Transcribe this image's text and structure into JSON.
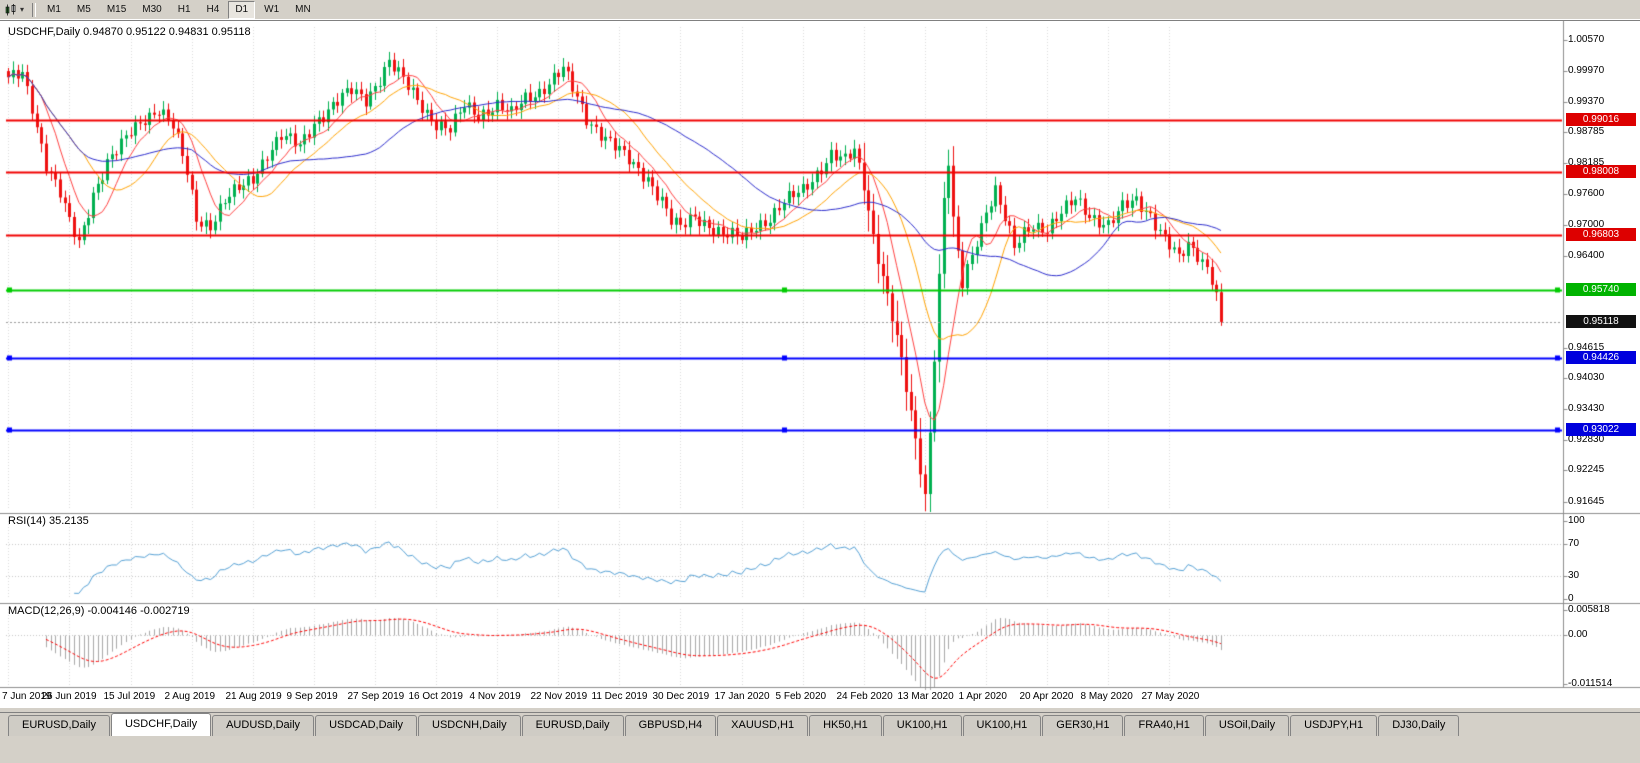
{
  "toolbar": {
    "chart_icon": "candlestick-chart-icon",
    "timeframes": [
      {
        "label": "M1",
        "active": false
      },
      {
        "label": "M5",
        "active": false
      },
      {
        "label": "M15",
        "active": false
      },
      {
        "label": "M30",
        "active": false
      },
      {
        "label": "H1",
        "active": false
      },
      {
        "label": "H4",
        "active": false
      },
      {
        "label": "D1",
        "active": true
      },
      {
        "label": "W1",
        "active": false
      },
      {
        "label": "MN",
        "active": false
      }
    ]
  },
  "chart": {
    "symbol_title": "USDCHF,Daily  0.94870 0.95122 0.94831 0.95118",
    "rsi_title": "RSI(14) 35.2135",
    "macd_title": "MACD(12,26,9) -0.004146 -0.002719",
    "price_axis_labels": [
      {
        "label": "1.00570",
        "value": 1.0057
      },
      {
        "label": "0.99970",
        "value": 0.9997
      },
      {
        "label": "0.99370",
        "value": 0.9937
      },
      {
        "label": "0.98785",
        "value": 0.98785
      },
      {
        "label": "0.98185",
        "value": 0.98185
      },
      {
        "label": "0.97600",
        "value": 0.976
      },
      {
        "label": "0.97000",
        "value": 0.97
      },
      {
        "label": "0.96400",
        "value": 0.964
      },
      {
        "label": "0.94615",
        "value": 0.94615
      },
      {
        "label": "0.94030",
        "value": 0.9403
      },
      {
        "label": "0.93430",
        "value": 0.9343
      },
      {
        "label": "0.92830",
        "value": 0.9283
      },
      {
        "label": "0.92245",
        "value": 0.92245
      },
      {
        "label": "0.91645",
        "value": 0.91645
      }
    ],
    "rsi_axis_labels": [
      {
        "label": "100",
        "value": 100
      },
      {
        "label": "70",
        "value": 70
      },
      {
        "label": "30",
        "value": 30
      },
      {
        "label": "0",
        "value": 0
      }
    ],
    "macd_axis_labels": [
      {
        "label": "0.005818",
        "value": 0.005818
      },
      {
        "label": "0.00",
        "value": 0
      },
      {
        "label": "-0.011514",
        "value": -0.011514
      }
    ],
    "levels": [
      {
        "label": "0.99016",
        "value": 0.99016,
        "line_color": "#f00000",
        "badge_color": "#dd0000",
        "handles": false
      },
      {
        "label": "0.98008",
        "value": 0.98008,
        "line_color": "#f00000",
        "badge_color": "#dd0000",
        "handles": false
      },
      {
        "label": "0.96803",
        "value": 0.96803,
        "line_color": "#f00000",
        "badge_color": "#dd0000",
        "handles": false
      },
      {
        "label": "0.95740",
        "value": 0.9574,
        "line_color": "#00cc00",
        "badge_color": "#00b300",
        "handles": true
      },
      {
        "label": "0.94426",
        "value": 0.94426,
        "line_color": "#0000ff",
        "badge_color": "#0000dd",
        "handles": true
      },
      {
        "label": "0.93022",
        "value": 0.93022,
        "line_color": "#0000ff",
        "badge_color": "#0000dd",
        "handles": true
      }
    ],
    "current_price": {
      "label": "0.95118",
      "value": 0.95118,
      "line_color": "#9a9a9a",
      "badge_color": "#111111"
    },
    "date_labels": [
      "7 Jun 2019",
      "26 Jun 2019",
      "15 Jul 2019",
      "2 Aug 2019",
      "21 Aug 2019",
      "9 Sep 2019",
      "27 Sep 2019",
      "16 Oct 2019",
      "4 Nov 2019",
      "22 Nov 2019",
      "11 Dec 2019",
      "30 Dec 2019",
      "17 Jan 2020",
      "5 Feb 2020",
      "24 Feb 2020",
      "13 Mar 2020",
      "1 Apr 2020",
      "20 Apr 2020",
      "8 May 2020",
      "27 May 2020"
    ]
  },
  "chart_data": {
    "type": "candlestick",
    "symbol": "USDCHF",
    "timeframe": "Daily",
    "ohlc_current": {
      "open": 0.9487,
      "high": 0.95122,
      "low": 0.94831,
      "close": 0.95118
    },
    "bars": 259,
    "price_range": [
      0.915,
      1.0082
    ],
    "candle_colors": {
      "up": "#00b050",
      "down": "#ee1111"
    },
    "close_anchors": [
      [
        0,
        0.9978
      ],
      [
        3,
        0.9992
      ],
      [
        5,
        0.993
      ],
      [
        8,
        0.9818
      ],
      [
        11,
        0.9758
      ],
      [
        13,
        0.9702
      ],
      [
        15,
        0.9663
      ],
      [
        18,
        0.9762
      ],
      [
        21,
        0.982
      ],
      [
        24,
        0.9851
      ],
      [
        26,
        0.9878
      ],
      [
        29,
        0.9908
      ],
      [
        32,
        0.9925
      ],
      [
        35,
        0.9888
      ],
      [
        38,
        0.98
      ],
      [
        40,
        0.9713
      ],
      [
        43,
        0.97
      ],
      [
        46,
        0.9744
      ],
      [
        49,
        0.9768
      ],
      [
        52,
        0.9791
      ],
      [
        55,
        0.9838
      ],
      [
        58,
        0.9869
      ],
      [
        62,
        0.9851
      ],
      [
        65,
        0.9899
      ],
      [
        69,
        0.9929
      ],
      [
        73,
        0.9958
      ],
      [
        76,
        0.9944
      ],
      [
        79,
        0.9984
      ],
      [
        81,
        1.0014
      ],
      [
        83,
        0.9989
      ],
      [
        86,
        0.9954
      ],
      [
        89,
        0.9919
      ],
      [
        91,
        0.9896
      ],
      [
        94,
        0.9881
      ],
      [
        97,
        0.9929
      ],
      [
        100,
        0.9914
      ],
      [
        104,
        0.9931
      ],
      [
        107,
        0.9911
      ],
      [
        110,
        0.9944
      ],
      [
        113,
        0.9959
      ],
      [
        116,
        0.9984
      ],
      [
        118,
        0.9999
      ],
      [
        120,
        0.9961
      ],
      [
        123,
        0.9906
      ],
      [
        126,
        0.9879
      ],
      [
        130,
        0.9841
      ],
      [
        133,
        0.9812
      ],
      [
        136,
        0.9791
      ],
      [
        139,
        0.9749
      ],
      [
        141,
        0.9706
      ],
      [
        143,
        0.9691
      ],
      [
        146,
        0.9716
      ],
      [
        149,
        0.9701
      ],
      [
        152,
        0.9681
      ],
      [
        156,
        0.9672
      ],
      [
        159,
        0.9699
      ],
      [
        162,
        0.9714
      ],
      [
        165,
        0.9741
      ],
      [
        169,
        0.9766
      ],
      [
        172,
        0.9801
      ],
      [
        175,
        0.9836
      ],
      [
        178,
        0.9821
      ],
      [
        180,
        0.9841
      ],
      [
        182,
        0.9779
      ],
      [
        184,
        0.9681
      ],
      [
        186,
        0.9601
      ],
      [
        188,
        0.9521
      ],
      [
        190,
        0.9431
      ],
      [
        192,
        0.9331
      ],
      [
        194,
        0.9231
      ],
      [
        195,
        0.9178
      ],
      [
        196,
        0.9301
      ],
      [
        197,
        0.9452
      ],
      [
        198,
        0.9601
      ],
      [
        199,
        0.9749
      ],
      [
        200,
        0.9821
      ],
      [
        201,
        0.9701
      ],
      [
        202,
        0.9641
      ],
      [
        203,
        0.9581
      ],
      [
        205,
        0.9641
      ],
      [
        207,
        0.9699
      ],
      [
        208,
        0.9731
      ],
      [
        210,
        0.9769
      ],
      [
        212,
        0.9711
      ],
      [
        214,
        0.9651
      ],
      [
        216,
        0.9681
      ],
      [
        218,
        0.9701
      ],
      [
        221,
        0.9694
      ],
      [
        224,
        0.9721
      ],
      [
        227,
        0.9746
      ],
      [
        230,
        0.9719
      ],
      [
        234,
        0.9701
      ],
      [
        237,
        0.9731
      ],
      [
        240,
        0.9744
      ],
      [
        243,
        0.9721
      ],
      [
        245,
        0.9691
      ],
      [
        247,
        0.9661
      ],
      [
        249,
        0.9631
      ],
      [
        251,
        0.9656
      ],
      [
        253,
        0.9641
      ],
      [
        255,
        0.9621
      ],
      [
        256,
        0.9601
      ],
      [
        257,
        0.9566
      ],
      [
        258,
        0.95118
      ]
    ],
    "moving_averages": [
      {
        "period": 8,
        "color": "#ff4040"
      },
      {
        "period": 17,
        "color": "#ffa200"
      },
      {
        "period": 40,
        "color": "#2b2bcc"
      }
    ],
    "indicators": {
      "rsi": {
        "period": 14,
        "current": 35.2135,
        "color": "#55a0d4",
        "range": [
          0,
          100
        ],
        "levels": [
          70,
          30
        ]
      },
      "macd": {
        "fast": 12,
        "slow": 26,
        "signal": 9,
        "current": [
          -0.004146,
          -0.002719
        ],
        "hist_color": "#a8a8a8",
        "signal_color": "#ff0000",
        "range": [
          -0.0118,
          0.006
        ]
      }
    }
  },
  "tabs": [
    {
      "label": "EURUSD,Daily",
      "active": false
    },
    {
      "label": "USDCHF,Daily",
      "active": true
    },
    {
      "label": "AUDUSD,Daily",
      "active": false
    },
    {
      "label": "USDCAD,Daily",
      "active": false
    },
    {
      "label": "USDCNH,Daily",
      "active": false
    },
    {
      "label": "EURUSD,Daily",
      "active": false
    },
    {
      "label": "GBPUSD,H4",
      "active": false
    },
    {
      "label": "XAUUSD,H1",
      "active": false
    },
    {
      "label": "HK50,H1",
      "active": false
    },
    {
      "label": "UK100,H1",
      "active": false
    },
    {
      "label": "UK100,H1",
      "active": false
    },
    {
      "label": "GER30,H1",
      "active": false
    },
    {
      "label": "FRA40,H1",
      "active": false
    },
    {
      "label": "USOil,Daily",
      "active": false
    },
    {
      "label": "USDJPY,H1",
      "active": false
    },
    {
      "label": "DJ30,Daily",
      "active": false
    }
  ]
}
